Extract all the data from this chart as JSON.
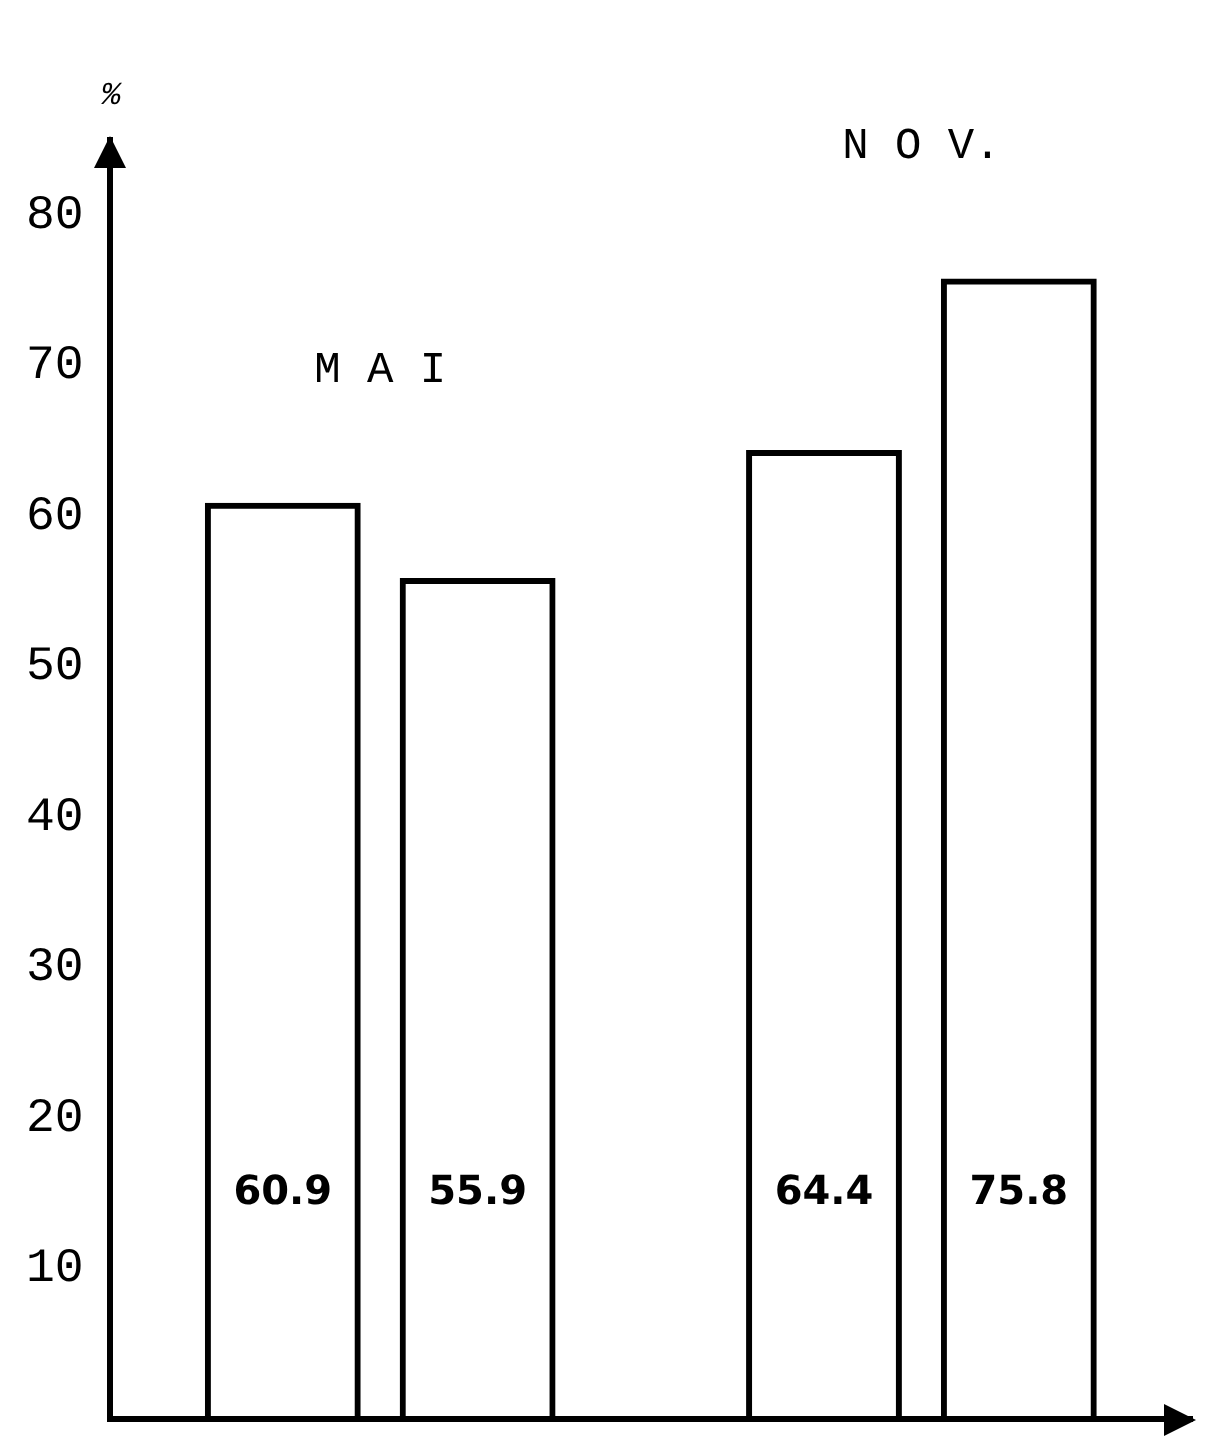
{
  "chart_data": {
    "type": "bar",
    "ylabel": "%",
    "categories": [
      "M A I",
      "N O V."
    ],
    "series": [
      {
        "color": "#000000",
        "values": [
          60.9,
          64.4
        ]
      },
      {
        "color": "#000000",
        "values": [
          55.9,
          75.8
        ]
      }
    ],
    "ylim": [
      0,
      85
    ],
    "yticks": [
      10,
      20,
      30,
      40,
      50,
      60,
      70,
      80
    ],
    "grid": false,
    "legend": false,
    "data_labels": true
  }
}
